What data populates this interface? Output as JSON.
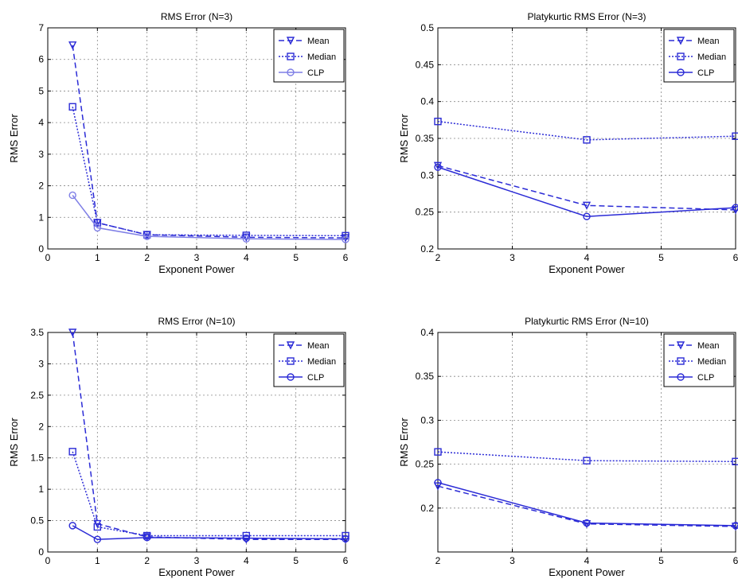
{
  "colors": {
    "line": "#2b2bd6",
    "line_light": "#7f7fe6",
    "grid": "#888888",
    "axis": "#000000"
  },
  "chart_data": [
    {
      "type": "line",
      "title": "RMS Error (N=3)",
      "xlabel": "Exponent Power",
      "ylabel": "RMS Error",
      "xlim": [
        0,
        6
      ],
      "ylim": [
        0,
        7
      ],
      "xticks": [
        0,
        1,
        2,
        3,
        4,
        5,
        6
      ],
      "yticks": [
        0,
        1,
        2,
        3,
        4,
        5,
        6,
        7
      ],
      "grid": true,
      "legend_position": "top-right",
      "series": [
        {
          "name": "Mean",
          "style": "dashed",
          "marker": "triangle-down",
          "x": [
            0.5,
            1,
            2,
            4,
            6
          ],
          "y": [
            6.45,
            0.83,
            0.45,
            0.37,
            0.35
          ]
        },
        {
          "name": "Median",
          "style": "dotted",
          "marker": "square",
          "x": [
            0.5,
            1,
            2,
            4,
            6
          ],
          "y": [
            4.5,
            0.83,
            0.45,
            0.43,
            0.42
          ]
        },
        {
          "name": "CLP",
          "style": "solid-light",
          "marker": "circle",
          "x": [
            0.5,
            1,
            2,
            4,
            6
          ],
          "y": [
            1.7,
            0.67,
            0.4,
            0.32,
            0.3
          ]
        }
      ]
    },
    {
      "type": "line",
      "title": "Platykurtic RMS Error (N=3)",
      "xlabel": "Exponent Power",
      "ylabel": "RMS Error",
      "xlim": [
        2,
        6
      ],
      "ylim": [
        0.2,
        0.5
      ],
      "xticks": [
        2,
        3,
        4,
        5,
        6
      ],
      "yticks": [
        0.2,
        0.25,
        0.3,
        0.35,
        0.4,
        0.45,
        0.5
      ],
      "grid": true,
      "legend_position": "top-right",
      "series": [
        {
          "name": "Mean",
          "style": "dashed",
          "marker": "triangle-down",
          "x": [
            2,
            4,
            6
          ],
          "y": [
            0.313,
            0.259,
            0.253
          ]
        },
        {
          "name": "Median",
          "style": "dotted",
          "marker": "square",
          "x": [
            2,
            4,
            6
          ],
          "y": [
            0.373,
            0.348,
            0.353
          ]
        },
        {
          "name": "CLP",
          "style": "solid",
          "marker": "circle",
          "x": [
            2,
            4,
            6
          ],
          "y": [
            0.311,
            0.244,
            0.256
          ]
        }
      ]
    },
    {
      "type": "line",
      "title": "RMS Error (N=10)",
      "xlabel": "Exponent Power",
      "ylabel": "RMS Error",
      "xlim": [
        0,
        6
      ],
      "ylim": [
        0,
        3.5
      ],
      "xticks": [
        0,
        1,
        2,
        3,
        4,
        5,
        6
      ],
      "yticks": [
        0,
        0.5,
        1,
        1.5,
        2,
        2.5,
        3,
        3.5
      ],
      "grid": true,
      "legend_position": "top-right",
      "series": [
        {
          "name": "Mean",
          "style": "dashed",
          "marker": "triangle-down",
          "x": [
            0.5,
            1,
            2,
            4,
            6
          ],
          "y": [
            3.5,
            0.45,
            0.24,
            0.2,
            0.2
          ]
        },
        {
          "name": "Median",
          "style": "dotted",
          "marker": "square",
          "x": [
            0.5,
            1,
            2,
            4,
            6
          ],
          "y": [
            1.6,
            0.4,
            0.26,
            0.26,
            0.26
          ]
        },
        {
          "name": "CLP",
          "style": "solid",
          "marker": "circle",
          "x": [
            0.5,
            1,
            2,
            4,
            6
          ],
          "y": [
            0.42,
            0.2,
            0.23,
            0.22,
            0.21
          ]
        }
      ]
    },
    {
      "type": "line",
      "title": "Platykurtic RMS Error (N=10)",
      "xlabel": "Exponent Power",
      "ylabel": "RMS Error",
      "xlim": [
        2,
        6
      ],
      "ylim": [
        0.15,
        0.4
      ],
      "xticks": [
        2,
        3,
        4,
        5,
        6
      ],
      "yticks": [
        0.2,
        0.25,
        0.3,
        0.35,
        0.4
      ],
      "grid": true,
      "legend_position": "top-right",
      "series": [
        {
          "name": "Mean",
          "style": "dashed",
          "marker": "triangle-down",
          "x": [
            2,
            4,
            6
          ],
          "y": [
            0.225,
            0.182,
            0.179
          ]
        },
        {
          "name": "Median",
          "style": "dotted",
          "marker": "square",
          "x": [
            2,
            4,
            6
          ],
          "y": [
            0.264,
            0.254,
            0.253
          ]
        },
        {
          "name": "CLP",
          "style": "solid",
          "marker": "circle",
          "x": [
            2,
            4,
            6
          ],
          "y": [
            0.229,
            0.183,
            0.18
          ]
        }
      ]
    }
  ]
}
